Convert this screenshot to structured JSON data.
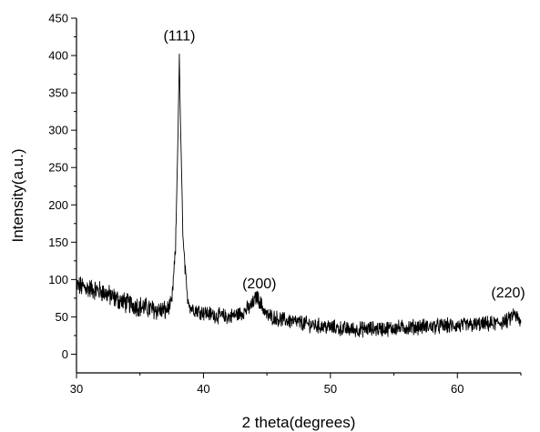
{
  "chart_data": {
    "type": "line",
    "title": "",
    "xlabel": "2 theta(degrees)",
    "ylabel": "Intensity(a.u.)",
    "xlim": [
      30,
      65
    ],
    "ylim": [
      -25,
      450
    ],
    "x_ticks": [
      30,
      40,
      50,
      60
    ],
    "y_ticks": [
      0,
      50,
      100,
      150,
      200,
      250,
      300,
      350,
      400,
      450
    ],
    "grid": false,
    "legend": "none",
    "line_color": "#000000",
    "annotations": [
      {
        "text": "(111)",
        "x": 38.1,
        "y": 420
      },
      {
        "text": "(200)",
        "x": 44.4,
        "y": 88
      },
      {
        "text": "(220)",
        "x": 64.0,
        "y": 76
      }
    ],
    "series": [
      {
        "x": [
          30.0,
          31.0,
          32.0,
          33.0,
          34.0,
          35.0,
          36.0,
          37.0,
          37.5,
          37.8,
          38.0,
          38.1,
          38.2,
          38.4,
          38.7,
          39.0,
          40.0,
          41.0,
          42.0,
          43.0,
          43.8,
          44.2,
          44.5,
          45.0,
          46.0,
          47.0,
          48.0,
          49.0,
          50.0,
          51.0,
          52.0,
          53.0,
          54.0,
          55.0,
          56.0,
          57.0,
          58.0,
          59.0,
          60.0,
          61.0,
          62.0,
          63.0,
          64.0,
          64.5,
          65.0
        ],
        "y": [
          92,
          88,
          84,
          75,
          68,
          64,
          60,
          58,
          68,
          140,
          300,
          398,
          300,
          150,
          80,
          62,
          56,
          52,
          50,
          55,
          65,
          78,
          68,
          52,
          47,
          44,
          41,
          38,
          36,
          34,
          33,
          34,
          34,
          35,
          36,
          37,
          37,
          38,
          38,
          39,
          40,
          41,
          45,
          55,
          40
        ]
      }
    ]
  }
}
